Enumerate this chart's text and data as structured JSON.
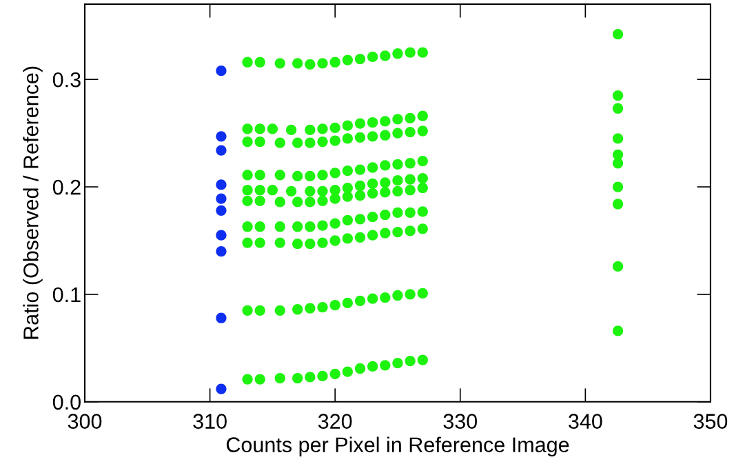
{
  "chart_data": {
    "type": "scatter",
    "xlabel": "Counts per Pixel in Reference Image",
    "ylabel": "Ratio (Observed / Reference)",
    "xlim": [
      300,
      350
    ],
    "xticks": [
      300,
      310,
      320,
      330,
      340,
      350
    ],
    "ylim": [
      0,
      0.37
    ],
    "yticks": [
      {
        "value": 0,
        "label": "0.0"
      },
      {
        "value": 0.1,
        "label": "0.1"
      },
      {
        "value": 0.2,
        "label": "0.2"
      },
      {
        "value": 0.3,
        "label": "0.3"
      }
    ],
    "marker": "circle",
    "grid": false,
    "series": [
      {
        "color": "#0f2ff0",
        "x": [
          310.9,
          310.9,
          310.9,
          310.9,
          310.9,
          310.9,
          310.9,
          310.9,
          310.9,
          310.9
        ],
        "values": [
          0.308,
          0.247,
          0.234,
          0.202,
          0.189,
          0.178,
          0.155,
          0.14,
          0.078,
          0.012
        ]
      },
      {
        "color": "#1ef20f",
        "x": [
          313,
          314,
          315.6,
          317,
          318,
          319,
          320,
          321,
          322,
          323,
          324,
          325,
          326,
          327
        ],
        "values": [
          0.316,
          0.316,
          0.315,
          0.315,
          0.314,
          0.315,
          0.316,
          0.318,
          0.319,
          0.321,
          0.322,
          0.324,
          0.325,
          0.325
        ]
      },
      {
        "color": "#1ef20f",
        "x": [
          313,
          314,
          315,
          316.5,
          318,
          319,
          320,
          321,
          322,
          323,
          324,
          325,
          326,
          327
        ],
        "values": [
          0.254,
          0.254,
          0.254,
          0.253,
          0.253,
          0.254,
          0.255,
          0.257,
          0.259,
          0.26,
          0.261,
          0.263,
          0.264,
          0.266
        ]
      },
      {
        "color": "#1ef20f",
        "x": [
          313,
          314,
          315.6,
          317,
          318,
          319,
          320,
          321,
          322,
          323,
          324,
          325,
          326,
          327
        ],
        "values": [
          0.242,
          0.242,
          0.241,
          0.241,
          0.241,
          0.242,
          0.243,
          0.245,
          0.246,
          0.247,
          0.248,
          0.25,
          0.251,
          0.252
        ]
      },
      {
        "color": "#1ef20f",
        "x": [
          313,
          314,
          315.6,
          317,
          318,
          319,
          320,
          321,
          322,
          323,
          324,
          325,
          326,
          327
        ],
        "values": [
          0.211,
          0.211,
          0.211,
          0.21,
          0.21,
          0.211,
          0.213,
          0.215,
          0.216,
          0.218,
          0.22,
          0.221,
          0.222,
          0.224
        ]
      },
      {
        "color": "#1ef20f",
        "x": [
          313,
          314,
          315,
          316.5,
          318,
          319,
          320,
          321,
          322,
          323,
          324,
          325,
          326,
          327
        ],
        "values": [
          0.197,
          0.197,
          0.197,
          0.196,
          0.196,
          0.196,
          0.197,
          0.199,
          0.201,
          0.203,
          0.204,
          0.206,
          0.207,
          0.208
        ]
      },
      {
        "color": "#1ef20f",
        "x": [
          313,
          314,
          315.6,
          317,
          318,
          319,
          320,
          321,
          322,
          323,
          324,
          325,
          326,
          327
        ],
        "values": [
          0.187,
          0.187,
          0.186,
          0.186,
          0.186,
          0.187,
          0.189,
          0.191,
          0.192,
          0.194,
          0.195,
          0.196,
          0.197,
          0.199
        ]
      },
      {
        "color": "#1ef20f",
        "x": [
          313,
          314,
          315.6,
          317,
          318,
          319,
          320,
          321,
          322,
          323,
          324,
          325,
          326,
          327
        ],
        "values": [
          0.163,
          0.163,
          0.163,
          0.163,
          0.163,
          0.164,
          0.166,
          0.169,
          0.17,
          0.172,
          0.174,
          0.176,
          0.176,
          0.177
        ]
      },
      {
        "color": "#1ef20f",
        "x": [
          313,
          314,
          315.6,
          317,
          318,
          319,
          320,
          321,
          322,
          323,
          324,
          325,
          326,
          327
        ],
        "values": [
          0.148,
          0.148,
          0.148,
          0.147,
          0.147,
          0.148,
          0.15,
          0.152,
          0.153,
          0.155,
          0.157,
          0.158,
          0.159,
          0.161
        ]
      },
      {
        "color": "#1ef20f",
        "x": [
          313,
          314,
          315.6,
          317,
          318,
          319,
          320,
          321,
          322,
          323,
          324,
          325,
          326,
          327
        ],
        "values": [
          0.085,
          0.085,
          0.085,
          0.086,
          0.087,
          0.088,
          0.09,
          0.092,
          0.094,
          0.096,
          0.097,
          0.099,
          0.1,
          0.101
        ]
      },
      {
        "color": "#1ef20f",
        "x": [
          313,
          314,
          315.6,
          317,
          318,
          319,
          320,
          321,
          322,
          323,
          324,
          325,
          326,
          327
        ],
        "values": [
          0.021,
          0.021,
          0.022,
          0.022,
          0.023,
          0.024,
          0.026,
          0.028,
          0.031,
          0.033,
          0.034,
          0.036,
          0.038,
          0.039
        ]
      },
      {
        "color": "#1ef20f",
        "x": [
          342.6,
          342.6,
          342.6,
          342.6,
          342.6,
          342.6,
          342.6,
          342.6,
          342.6,
          342.6
        ],
        "values": [
          0.342,
          0.285,
          0.273,
          0.245,
          0.23,
          0.222,
          0.2,
          0.184,
          0.126,
          0.066
        ]
      }
    ]
  }
}
